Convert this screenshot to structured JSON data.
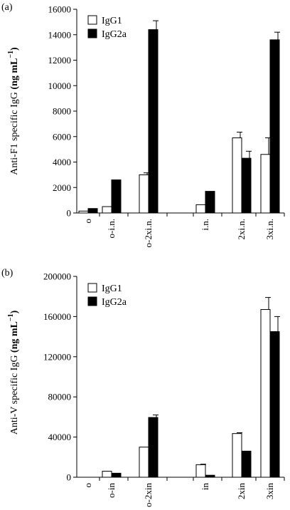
{
  "chart_data": [
    {
      "type": "bar",
      "panel_label": "(a)",
      "ylabel_plain": "Anti-F1 specific IgG",
      "ylabel_bold": "(ng mL",
      "ylabel_sup": "−1",
      "ylabel_close": ")",
      "ylim": [
        0,
        16000
      ],
      "yticks": [
        0,
        2000,
        4000,
        6000,
        8000,
        10000,
        12000,
        14000,
        16000
      ],
      "ytick_labels": [
        "0",
        "2000",
        "4000",
        "6000",
        "8000",
        "10000",
        "12000",
        "14000",
        "16000"
      ],
      "categories": [
        "o",
        "o-i.n.",
        "o-2xi.n.",
        "",
        "i.n.",
        "2xi.n.",
        "3xi.n."
      ],
      "series": [
        {
          "name": "IgG1",
          "color": "#ffffff",
          "values": [
            150,
            500,
            3000,
            null,
            650,
            5900,
            4600
          ],
          "errors": [
            0,
            0,
            150,
            null,
            0,
            450,
            1300
          ]
        },
        {
          "name": "IgG2a",
          "color": "#000000",
          "values": [
            350,
            2600,
            14400,
            null,
            1700,
            4300,
            13600
          ],
          "errors": [
            0,
            0,
            700,
            null,
            0,
            550,
            600
          ]
        }
      ],
      "legend_position": "top-left",
      "grid": false
    },
    {
      "type": "bar",
      "panel_label": "(b)",
      "ylabel_plain": "Anti-V specific IgG",
      "ylabel_bold": "(ng mL",
      "ylabel_sup": "−1",
      "ylabel_close": ")",
      "ylim": [
        0,
        200000
      ],
      "yticks": [
        0,
        40000,
        80000,
        120000,
        160000,
        200000
      ],
      "ytick_labels": [
        "0",
        "40000",
        "80000",
        "120000",
        "160000",
        "200000"
      ],
      "categories": [
        "o",
        "o-in",
        "o-2xin",
        "",
        "in",
        "2xin",
        "3xin"
      ],
      "series": [
        {
          "name": "IgG1",
          "color": "#ffffff",
          "values": [
            0,
            6000,
            30000,
            null,
            12500,
            43500,
            167000
          ],
          "errors": [
            0,
            0,
            0,
            null,
            500,
            800,
            12000
          ]
        },
        {
          "name": "IgG2a",
          "color": "#000000",
          "values": [
            0,
            4000,
            59500,
            null,
            2000,
            26000,
            145000
          ],
          "errors": [
            0,
            0,
            2500,
            null,
            0,
            0,
            15000
          ]
        }
      ],
      "legend_position": "top-left",
      "grid": false
    }
  ]
}
